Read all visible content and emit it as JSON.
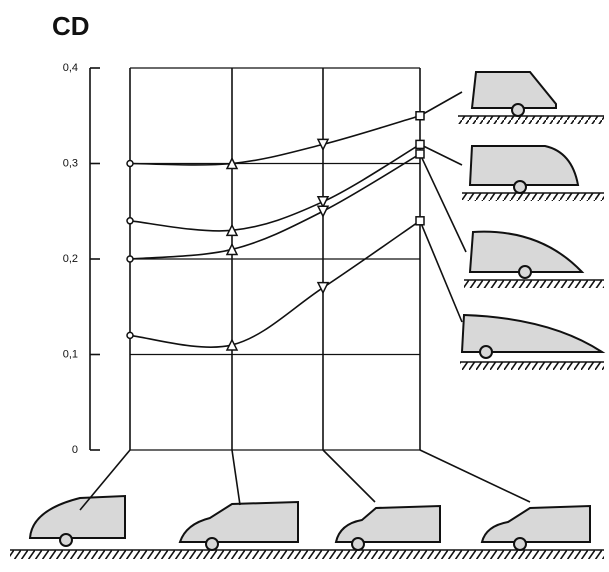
{
  "chart_data": {
    "type": "line",
    "title": "CD",
    "categories": [
      null,
      null,
      null,
      null
    ],
    "ylim": [
      0,
      0.4
    ],
    "yticks": [
      {
        "value": 0,
        "label": "0"
      },
      {
        "value": 0.1,
        "label": "0,1"
      },
      {
        "value": 0.2,
        "label": "0,2"
      },
      {
        "value": 0.3,
        "label": "0,3"
      },
      {
        "value": 0.4,
        "label": "0,4"
      }
    ],
    "grid": true,
    "series": [
      {
        "color": "#111111",
        "values": [
          0.3,
          0.3,
          0.32,
          0.35
        ]
      },
      {
        "color": "#111111",
        "values": [
          0.24,
          0.23,
          0.26,
          0.32
        ]
      },
      {
        "color": "#111111",
        "values": [
          0.2,
          0.21,
          0.25,
          0.31
        ]
      },
      {
        "color": "#111111",
        "values": [
          0.12,
          0.11,
          0.17,
          0.24
        ]
      }
    ]
  }
}
